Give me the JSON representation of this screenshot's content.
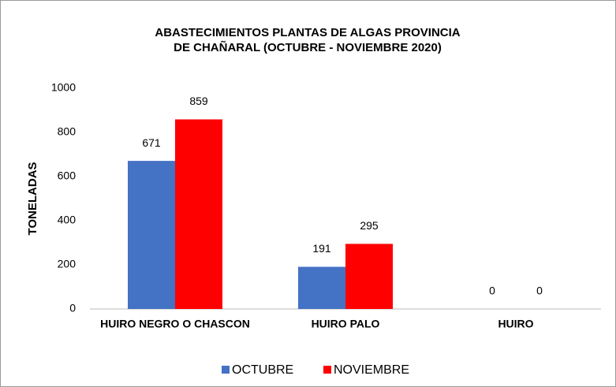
{
  "chart_data": {
    "type": "bar",
    "title": "ABASTECIMIENTOS PLANTAS DE ALGAS PROVINCIA DE CHAÑARAL (OCTUBRE - NOVIEMBRE 2020)",
    "y_label": "TONELADAS",
    "categories": [
      "HUIRO NEGRO O CHASCON",
      "HUIRO PALO",
      "HUIRO"
    ],
    "series": [
      {
        "name": "OCTUBRE",
        "color": "#4472c4",
        "values": [
          671,
          191,
          0
        ]
      },
      {
        "name": "NOVIEMBRE",
        "color": "#ff0000",
        "values": [
          859,
          295,
          0
        ]
      }
    ],
    "ylim": [
      0,
      1000
    ],
    "yticks": [
      0,
      200,
      400,
      600,
      800,
      1000
    ],
    "grid": false,
    "legend": "bottom"
  }
}
